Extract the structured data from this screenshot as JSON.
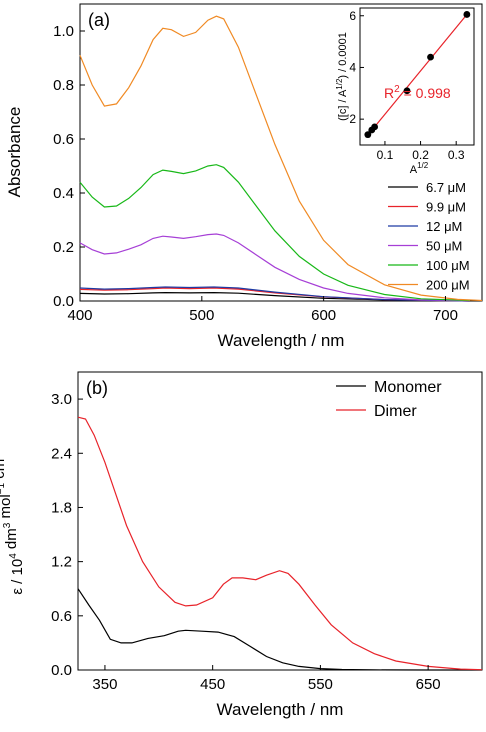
{
  "chart_data": [
    {
      "type": "line",
      "panel_label": "(a)",
      "xlabel": "Wavelength / nm",
      "ylabel": "Absorbance",
      "xlim": [
        400,
        730
      ],
      "ylim": [
        0,
        1.1
      ],
      "x_ticks": [
        400,
        500,
        600,
        700
      ],
      "y_ticks": [
        0.0,
        0.2,
        0.4,
        0.6,
        0.8,
        1.0
      ],
      "legend_position": "bottom-right",
      "series": [
        {
          "name": "6.7 μM",
          "color": "#000000",
          "points": [
            [
              400,
              0.028
            ],
            [
              420,
              0.026
            ],
            [
              440,
              0.027
            ],
            [
              460,
              0.03
            ],
            [
              470,
              0.031
            ],
            [
              490,
              0.03
            ],
            [
              510,
              0.031
            ],
            [
              530,
              0.029
            ],
            [
              560,
              0.02
            ],
            [
              600,
              0.01
            ],
            [
              650,
              0.004
            ],
            [
              700,
              0.001
            ],
            [
              720,
              0.0
            ]
          ]
        },
        {
          "name": "9.9 μM",
          "color": "#e8232a",
          "points": [
            [
              400,
              0.043
            ],
            [
              420,
              0.04
            ],
            [
              440,
              0.042
            ],
            [
              460,
              0.046
            ],
            [
              470,
              0.048
            ],
            [
              490,
              0.046
            ],
            [
              510,
              0.048
            ],
            [
              530,
              0.044
            ],
            [
              560,
              0.03
            ],
            [
              600,
              0.015
            ],
            [
              650,
              0.005
            ],
            [
              700,
              0.001
            ],
            [
              720,
              0.0
            ]
          ]
        },
        {
          "name": "12 μM",
          "color": "#1f3aa3",
          "points": [
            [
              400,
              0.048
            ],
            [
              420,
              0.044
            ],
            [
              440,
              0.046
            ],
            [
              460,
              0.05
            ],
            [
              470,
              0.052
            ],
            [
              490,
              0.05
            ],
            [
              510,
              0.052
            ],
            [
              530,
              0.048
            ],
            [
              560,
              0.033
            ],
            [
              600,
              0.016
            ],
            [
              650,
              0.005
            ],
            [
              700,
              0.001
            ],
            [
              720,
              0.0
            ]
          ]
        },
        {
          "name": "50 μM",
          "color": "#a63fd6",
          "points": [
            [
              400,
              0.215
            ],
            [
              410,
              0.19
            ],
            [
              420,
              0.174
            ],
            [
              430,
              0.178
            ],
            [
              440,
              0.192
            ],
            [
              450,
              0.208
            ],
            [
              460,
              0.232
            ],
            [
              468,
              0.24
            ],
            [
              475,
              0.237
            ],
            [
              485,
              0.232
            ],
            [
              495,
              0.238
            ],
            [
              505,
              0.246
            ],
            [
              512,
              0.248
            ],
            [
              518,
              0.243
            ],
            [
              530,
              0.215
            ],
            [
              545,
              0.17
            ],
            [
              560,
              0.125
            ],
            [
              580,
              0.08
            ],
            [
              600,
              0.048
            ],
            [
              620,
              0.028
            ],
            [
              650,
              0.012
            ],
            [
              680,
              0.004
            ],
            [
              720,
              0.001
            ]
          ]
        },
        {
          "name": "100 μM",
          "color": "#18b818",
          "points": [
            [
              400,
              0.44
            ],
            [
              410,
              0.385
            ],
            [
              420,
              0.348
            ],
            [
              430,
              0.352
            ],
            [
              440,
              0.38
            ],
            [
              450,
              0.42
            ],
            [
              460,
              0.468
            ],
            [
              468,
              0.485
            ],
            [
              475,
              0.48
            ],
            [
              485,
              0.472
            ],
            [
              495,
              0.482
            ],
            [
              505,
              0.5
            ],
            [
              512,
              0.505
            ],
            [
              518,
              0.495
            ],
            [
              530,
              0.44
            ],
            [
              545,
              0.35
            ],
            [
              560,
              0.26
            ],
            [
              580,
              0.165
            ],
            [
              600,
              0.1
            ],
            [
              620,
              0.058
            ],
            [
              650,
              0.024
            ],
            [
              680,
              0.008
            ],
            [
              720,
              0.002
            ]
          ]
        },
        {
          "name": "200 μM",
          "color": "#f08a24",
          "points": [
            [
              400,
              0.91
            ],
            [
              410,
              0.8
            ],
            [
              420,
              0.722
            ],
            [
              430,
              0.73
            ],
            [
              440,
              0.79
            ],
            [
              450,
              0.87
            ],
            [
              460,
              0.968
            ],
            [
              468,
              1.01
            ],
            [
              475,
              1.005
            ],
            [
              485,
              0.98
            ],
            [
              495,
              0.995
            ],
            [
              505,
              1.04
            ],
            [
              512,
              1.055
            ],
            [
              518,
              1.045
            ],
            [
              530,
              0.94
            ],
            [
              545,
              0.76
            ],
            [
              560,
              0.58
            ],
            [
              580,
              0.37
            ],
            [
              600,
              0.225
            ],
            [
              620,
              0.135
            ],
            [
              650,
              0.06
            ],
            [
              680,
              0.022
            ],
            [
              710,
              0.006
            ],
            [
              730,
              0.002
            ]
          ]
        }
      ]
    },
    {
      "type": "scatter",
      "inset": true,
      "xlabel": "A^1/2",
      "ylabel": "([c] / A^1/2) / 0.0001",
      "xlim": [
        0.03,
        0.35
      ],
      "ylim": [
        1,
        6.3
      ],
      "x_ticks": [
        0.1,
        0.2,
        0.3
      ],
      "y_ticks": [
        2,
        4,
        6
      ],
      "annotation": "R² = 0.998",
      "fit_line": {
        "x": [
          0.05,
          0.33
        ],
        "y": [
          1.35,
          6.05
        ],
        "color": "#e8232a"
      },
      "points": [
        [
          0.052,
          1.4
        ],
        [
          0.063,
          1.58
        ],
        [
          0.071,
          1.7
        ],
        [
          0.162,
          3.1
        ],
        [
          0.228,
          4.4
        ],
        [
          0.33,
          6.05
        ]
      ]
    },
    {
      "type": "line",
      "panel_label": "(b)",
      "xlabel": "Wavelength / nm",
      "ylabel": "ε / 10⁴ dm³ mol⁻¹ cm⁻¹",
      "xlim": [
        325,
        700
      ],
      "ylim": [
        0,
        3.3
      ],
      "x_ticks": [
        350,
        450,
        550,
        650
      ],
      "y_ticks": [
        0.0,
        0.6,
        1.2,
        1.8,
        2.4,
        3.0
      ],
      "legend_position": "top-right",
      "series": [
        {
          "name": "Monomer",
          "color": "#000000",
          "points": [
            [
              325,
              0.9
            ],
            [
              335,
              0.72
            ],
            [
              345,
              0.55
            ],
            [
              355,
              0.34
            ],
            [
              365,
              0.3
            ],
            [
              375,
              0.3
            ],
            [
              390,
              0.35
            ],
            [
              405,
              0.38
            ],
            [
              418,
              0.43
            ],
            [
              425,
              0.44
            ],
            [
              440,
              0.43
            ],
            [
              455,
              0.42
            ],
            [
              470,
              0.37
            ],
            [
              485,
              0.26
            ],
            [
              500,
              0.15
            ],
            [
              515,
              0.08
            ],
            [
              530,
              0.04
            ],
            [
              550,
              0.015
            ],
            [
              570,
              0.005
            ],
            [
              600,
              0.001
            ],
            [
              650,
              0.0
            ],
            [
              700,
              0.0
            ]
          ]
        },
        {
          "name": "Dimer",
          "color": "#e8232a",
          "points": [
            [
              325,
              2.8
            ],
            [
              332,
              2.78
            ],
            [
              340,
              2.6
            ],
            [
              350,
              2.3
            ],
            [
              360,
              1.95
            ],
            [
              370,
              1.6
            ],
            [
              385,
              1.2
            ],
            [
              400,
              0.92
            ],
            [
              415,
              0.75
            ],
            [
              425,
              0.71
            ],
            [
              435,
              0.72
            ],
            [
              450,
              0.8
            ],
            [
              460,
              0.95
            ],
            [
              468,
              1.02
            ],
            [
              478,
              1.02
            ],
            [
              490,
              1.0
            ],
            [
              500,
              1.05
            ],
            [
              512,
              1.1
            ],
            [
              520,
              1.07
            ],
            [
              530,
              0.95
            ],
            [
              545,
              0.72
            ],
            [
              560,
              0.5
            ],
            [
              580,
              0.3
            ],
            [
              600,
              0.18
            ],
            [
              620,
              0.1
            ],
            [
              650,
              0.04
            ],
            [
              680,
              0.01
            ],
            [
              700,
              0.003
            ]
          ]
        }
      ]
    }
  ]
}
